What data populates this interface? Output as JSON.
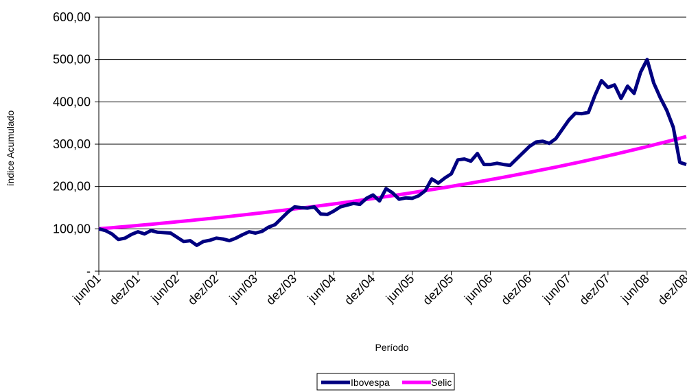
{
  "chart_data": {
    "type": "line",
    "title": "",
    "xlabel": "Período",
    "ylabel": "índice Acumulado",
    "ylim": [
      0,
      600
    ],
    "y_ticks": [
      {
        "value": 0,
        "label": "-"
      },
      {
        "value": 100,
        "label": "100,00"
      },
      {
        "value": 200,
        "label": "200,00"
      },
      {
        "value": 300,
        "label": "300,00"
      },
      {
        "value": 400,
        "label": "400,00"
      },
      {
        "value": 500,
        "label": "500,00"
      },
      {
        "value": 600,
        "label": "600,00"
      }
    ],
    "x_ticks": [
      "jun/01",
      "dez/01",
      "jun/02",
      "dez/02",
      "jun/03",
      "dez/03",
      "jun/04",
      "dez/04",
      "jun/05",
      "dez/05",
      "jun/06",
      "dez/06",
      "jun/07",
      "dez/07",
      "jun/08",
      "dez/08"
    ],
    "grid": "horizontal",
    "legend_position": "bottom",
    "series": [
      {
        "name": "Ibovespa",
        "color": "#000080",
        "values": [
          100,
          96,
          88,
          75,
          78,
          87,
          93,
          88,
          96,
          92,
          91,
          90,
          80,
          70,
          72,
          61,
          70,
          73,
          78,
          76,
          72,
          78,
          86,
          93,
          90,
          94,
          104,
          110,
          125,
          140,
          152,
          150,
          149,
          152,
          135,
          134,
          142,
          152,
          156,
          160,
          158,
          172,
          180,
          166,
          195,
          185,
          170,
          173,
          172,
          178,
          190,
          218,
          208,
          220,
          230,
          263,
          265,
          260,
          278,
          252,
          252,
          255,
          252,
          250,
          265,
          280,
          295,
          305,
          307,
          302,
          313,
          335,
          357,
          373,
          372,
          375,
          415,
          450,
          434,
          440,
          408,
          437,
          420,
          470,
          500,
          445,
          410,
          380,
          340,
          257,
          252
        ]
      },
      {
        "name": "Selic",
        "color": "#ff00ff",
        "start": 100,
        "end": 318,
        "points": 91
      }
    ]
  }
}
